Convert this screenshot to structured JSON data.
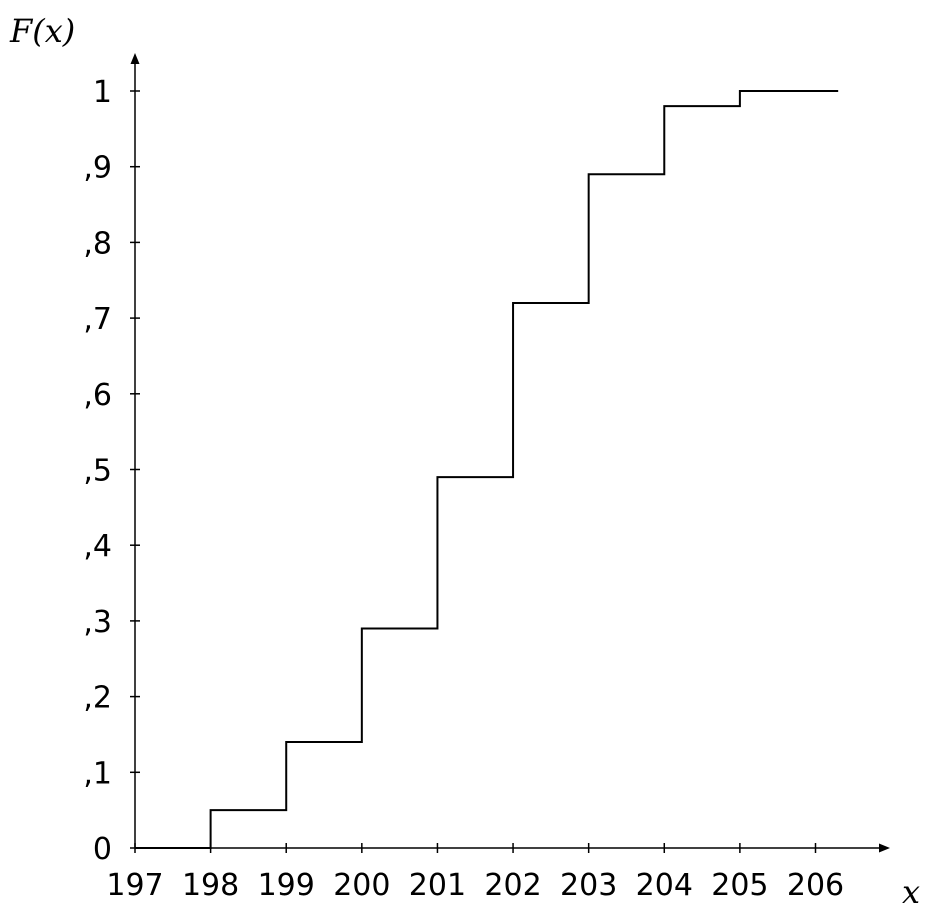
{
  "chart_data": {
    "type": "line",
    "subtype": "step",
    "title": "",
    "xlabel": "x",
    "ylabel": "F(x)",
    "xlim": [
      197,
      206.3
    ],
    "ylim": [
      0,
      1
    ],
    "grid": false,
    "x_ticks": [
      197,
      198,
      199,
      200,
      201,
      202,
      203,
      204,
      205,
      206
    ],
    "x_tick_labels": [
      "197",
      "198",
      "199",
      "200",
      "201",
      "202",
      "203",
      "204",
      "205",
      "206"
    ],
    "y_ticks": [
      0,
      0.1,
      0.2,
      0.3,
      0.4,
      0.5,
      0.6,
      0.7,
      0.8,
      0.9,
      1
    ],
    "y_tick_labels": [
      "0",
      ",1",
      ",2",
      ",3",
      ",4",
      ",5",
      ",6",
      ",7",
      ",8",
      ",9",
      "1"
    ],
    "series": [
      {
        "x": [
          197,
          198,
          199,
          200,
          201,
          202,
          203,
          204,
          205,
          206.3
        ],
        "y": [
          0,
          0.05,
          0.14,
          0.29,
          0.49,
          0.72,
          0.89,
          0.98,
          1.0,
          1.0
        ]
      }
    ]
  }
}
